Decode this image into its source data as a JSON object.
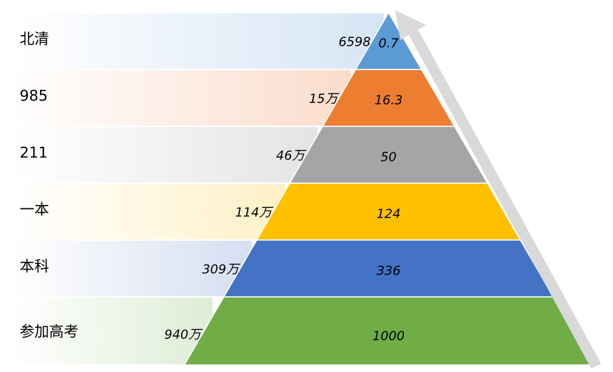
{
  "levels": [
    {
      "label": "北清",
      "count": "6598",
      "value": "0.7",
      "color": "#5b9bd5",
      "band": "#d6e5f5"
    },
    {
      "label": "985",
      "count": "15万",
      "value": "16.3",
      "color": "#ed7d31",
      "band": "#fbdccb"
    },
    {
      "label": "211",
      "count": "46万",
      "value": "50",
      "color": "#a5a5a5",
      "band": "#e4e4e4"
    },
    {
      "label": "一本",
      "count": "114万",
      "value": "124",
      "color": "#ffc000",
      "band": "#fff0c6"
    },
    {
      "label": "本科",
      "count": "309万",
      "value": "336",
      "color": "#4472c4",
      "band": "#d5dff1"
    },
    {
      "label": "参加高考",
      "count": "940万",
      "value": "1000",
      "color": "#70ad47",
      "band": "#deedd5"
    }
  ]
}
